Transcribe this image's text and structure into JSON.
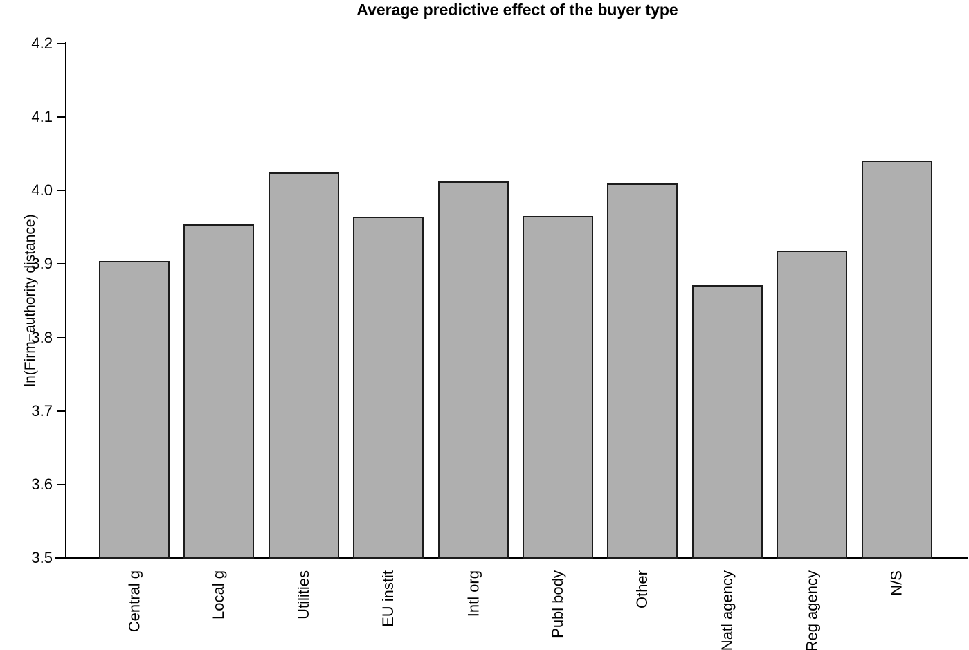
{
  "title": "Average predictive effect of the buyer type",
  "chart_data": {
    "type": "bar",
    "title": "Average predictive effect of the buyer type",
    "xlabel": "",
    "ylabel": "ln(Firm−authority distance)",
    "categories": [
      "Central g",
      "Local g",
      "Utilities",
      "EU instit",
      "Intl org",
      "Publ body",
      "Other",
      "Natl agency",
      "Reg agency",
      "N/S"
    ],
    "values": [
      3.905,
      3.955,
      4.026,
      3.965,
      4.013,
      3.966,
      4.011,
      3.872,
      3.919,
      4.042
    ],
    "ylim": [
      3.5,
      4.2
    ],
    "yticks": [
      3.5,
      3.6,
      3.7,
      3.8,
      3.9,
      4.0,
      4.1,
      4.2
    ],
    "ytick_labels": [
      "3.5",
      "3.6",
      "3.7",
      "3.8",
      "3.9",
      "4.0",
      "4.1",
      "4.2"
    ],
    "grid": false,
    "legend": null,
    "bar_fill_color": "#afafaf",
    "bar_border_color": "#1c1c1c",
    "axis_color": "#000000",
    "background_color": "#ffffff",
    "x_labels_rotated_degrees": 90
  }
}
